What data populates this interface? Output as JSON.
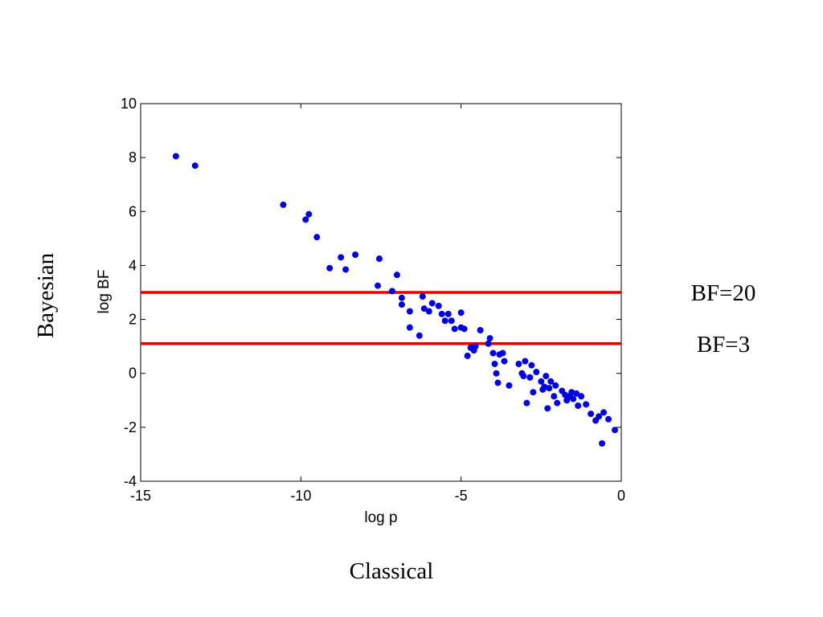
{
  "chart_data": {
    "type": "scatter",
    "xlabel": "log p",
    "ylabel": "log BF",
    "xlim": [
      -15,
      0
    ],
    "ylim": [
      -4,
      10
    ],
    "x_ticks": [
      -15,
      -10,
      -5,
      0
    ],
    "y_ticks": [
      -4,
      -2,
      0,
      2,
      4,
      6,
      8,
      10
    ],
    "grid": false,
    "marker_color": "#0000dd",
    "line_color": "#dd0000",
    "hlines": [
      {
        "y": 3.0,
        "label": "BF=20"
      },
      {
        "y": 1.1,
        "label": "BF=3"
      }
    ],
    "x_caption": "Classical",
    "y_caption": "Bayesian",
    "points": [
      [
        -13.9,
        8.05
      ],
      [
        -13.3,
        7.7
      ],
      [
        -10.55,
        6.25
      ],
      [
        -9.85,
        5.7
      ],
      [
        -9.75,
        5.9
      ],
      [
        -9.5,
        5.05
      ],
      [
        -9.1,
        3.9
      ],
      [
        -8.75,
        4.3
      ],
      [
        -8.6,
        3.85
      ],
      [
        -8.3,
        4.4
      ],
      [
        -7.6,
        3.25
      ],
      [
        -7.55,
        4.25
      ],
      [
        -7.15,
        3.05
      ],
      [
        -7.0,
        3.65
      ],
      [
        -6.85,
        2.8
      ],
      [
        -6.85,
        2.55
      ],
      [
        -6.6,
        2.3
      ],
      [
        -6.6,
        1.7
      ],
      [
        -6.3,
        1.4
      ],
      [
        -6.2,
        2.85
      ],
      [
        -6.15,
        2.4
      ],
      [
        -6.0,
        2.3
      ],
      [
        -5.9,
        2.6
      ],
      [
        -5.7,
        2.5
      ],
      [
        -5.6,
        2.2
      ],
      [
        -5.5,
        1.95
      ],
      [
        -5.4,
        2.2
      ],
      [
        -5.3,
        1.95
      ],
      [
        -5.2,
        1.65
      ],
      [
        -5.0,
        1.7
      ],
      [
        -5.0,
        2.25
      ],
      [
        -4.9,
        1.65
      ],
      [
        -4.8,
        0.65
      ],
      [
        -4.7,
        0.95
      ],
      [
        -4.6,
        0.85
      ],
      [
        -4.55,
        1.0
      ],
      [
        -4.4,
        1.6
      ],
      [
        -4.15,
        1.1
      ],
      [
        -4.1,
        1.3
      ],
      [
        -4.0,
        0.75
      ],
      [
        -3.95,
        0.35
      ],
      [
        -3.9,
        0.0
      ],
      [
        -3.85,
        -0.35
      ],
      [
        -3.8,
        0.7
      ],
      [
        -3.7,
        0.75
      ],
      [
        -3.65,
        0.45
      ],
      [
        -3.5,
        -0.45
      ],
      [
        -3.2,
        0.35
      ],
      [
        -3.1,
        0.0
      ],
      [
        -3.05,
        -0.1
      ],
      [
        -3.0,
        0.45
      ],
      [
        -2.95,
        -1.1
      ],
      [
        -2.85,
        -0.15
      ],
      [
        -2.8,
        0.3
      ],
      [
        -2.75,
        -0.7
      ],
      [
        -2.65,
        0.05
      ],
      [
        -2.5,
        -0.3
      ],
      [
        -2.45,
        -0.6
      ],
      [
        -2.4,
        -0.5
      ],
      [
        -2.35,
        -0.1
      ],
      [
        -2.3,
        -1.3
      ],
      [
        -2.25,
        -0.55
      ],
      [
        -2.2,
        -0.3
      ],
      [
        -2.1,
        -0.85
      ],
      [
        -2.05,
        -0.45
      ],
      [
        -2.0,
        -1.1
      ],
      [
        -1.85,
        -0.65
      ],
      [
        -1.75,
        -0.8
      ],
      [
        -1.7,
        -1.0
      ],
      [
        -1.6,
        -0.85
      ],
      [
        -1.55,
        -0.7
      ],
      [
        -1.5,
        -0.95
      ],
      [
        -1.4,
        -0.75
      ],
      [
        -1.35,
        -1.2
      ],
      [
        -1.25,
        -0.85
      ],
      [
        -1.1,
        -1.15
      ],
      [
        -0.95,
        -1.5
      ],
      [
        -0.8,
        -1.75
      ],
      [
        -0.7,
        -1.6
      ],
      [
        -0.6,
        -2.6
      ],
      [
        -0.55,
        -1.45
      ],
      [
        -0.4,
        -1.7
      ],
      [
        -0.2,
        -2.1
      ]
    ]
  }
}
